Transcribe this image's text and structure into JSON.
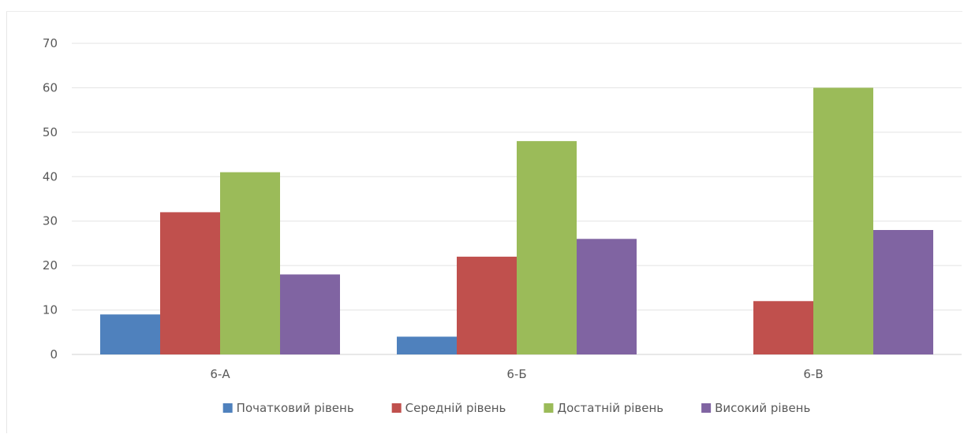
{
  "chart_data": {
    "type": "bar",
    "categories": [
      "6-А",
      "6-Б",
      "6-В"
    ],
    "series": [
      {
        "name": "Початковий рівень",
        "values": [
          9,
          4,
          0
        ],
        "color": "#4f81bd"
      },
      {
        "name": "Середній рівень",
        "values": [
          32,
          22,
          12
        ],
        "color": "#c0504d"
      },
      {
        "name": "Достатній рівень",
        "values": [
          41,
          48,
          60
        ],
        "color": "#9bbb59"
      },
      {
        "name": "Високий рівень",
        "values": [
          18,
          26,
          28
        ],
        "color": "#8064a2"
      }
    ],
    "yticks": [
      0,
      10,
      20,
      30,
      40,
      50,
      60,
      70
    ],
    "ylim": [
      0,
      70
    ],
    "grid": true,
    "legend_position": "bottom"
  }
}
